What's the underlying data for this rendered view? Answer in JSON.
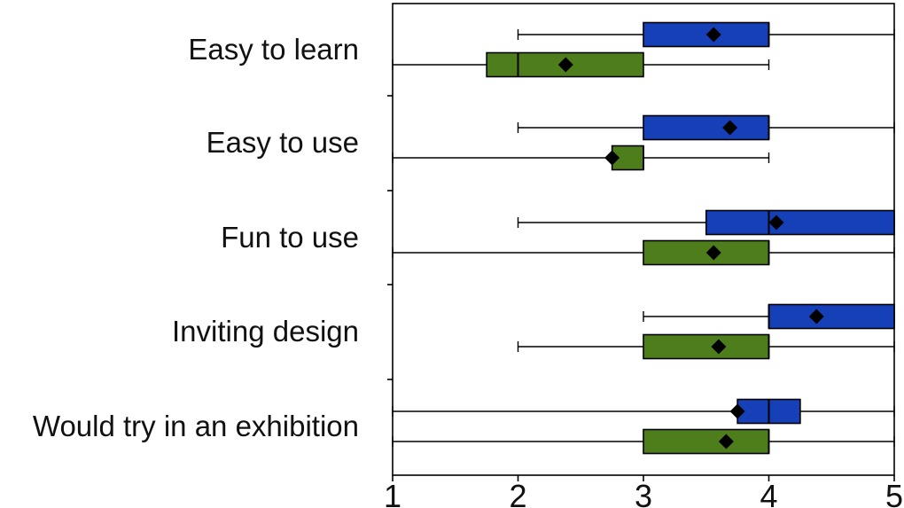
{
  "chart_data": {
    "type": "boxplot",
    "orientation": "horizontal",
    "title": "",
    "xlabel": "",
    "ylabel": "",
    "xlim": [
      1,
      5
    ],
    "x_ticks": [
      1,
      2,
      3,
      4,
      5
    ],
    "x_tick_labels": [
      "1",
      "2",
      "3",
      "4",
      "5"
    ],
    "categories": [
      "Easy to learn",
      "Easy to use",
      "Fun to use",
      "Inviting design",
      "Would try in an exhibition"
    ],
    "mean_marker": "diamond",
    "series": [
      {
        "color": "#1540b8",
        "boxes": [
          {
            "whisker_low": 2,
            "q1": 3,
            "median": 4,
            "q3": 4,
            "whisker_high": 5,
            "mean": 3.56
          },
          {
            "whisker_low": 2,
            "q1": 3,
            "median": 4,
            "q3": 4,
            "whisker_high": 5,
            "mean": 3.69
          },
          {
            "whisker_low": 2,
            "q1": 3.5,
            "median": 4,
            "q3": 5,
            "whisker_high": 5,
            "mean": 4.06
          },
          {
            "whisker_low": 3,
            "q1": 4,
            "median": 4,
            "q3": 5,
            "whisker_high": 5,
            "mean": 4.38
          },
          {
            "whisker_low": 1,
            "q1": 3.75,
            "median": 4,
            "q3": 4.25,
            "whisker_high": 5,
            "mean": 3.75
          }
        ]
      },
      {
        "color": "#4e7d1c",
        "boxes": [
          {
            "whisker_low": 1,
            "q1": 1.75,
            "median": 2,
            "q3": 3,
            "whisker_high": 4,
            "mean": 2.38
          },
          {
            "whisker_low": 1,
            "q1": 2.75,
            "median": 3,
            "q3": 3,
            "whisker_high": 4,
            "mean": 2.75
          },
          {
            "whisker_low": 1,
            "q1": 3,
            "median": 4,
            "q3": 4,
            "whisker_high": 5,
            "mean": 3.56
          },
          {
            "whisker_low": 2,
            "q1": 3,
            "median": 4,
            "q3": 4,
            "whisker_high": 5,
            "mean": 3.6
          },
          {
            "whisker_low": 1,
            "q1": 3,
            "median": 4,
            "q3": 4,
            "whisker_high": 5,
            "mean": 3.66
          }
        ]
      }
    ]
  }
}
